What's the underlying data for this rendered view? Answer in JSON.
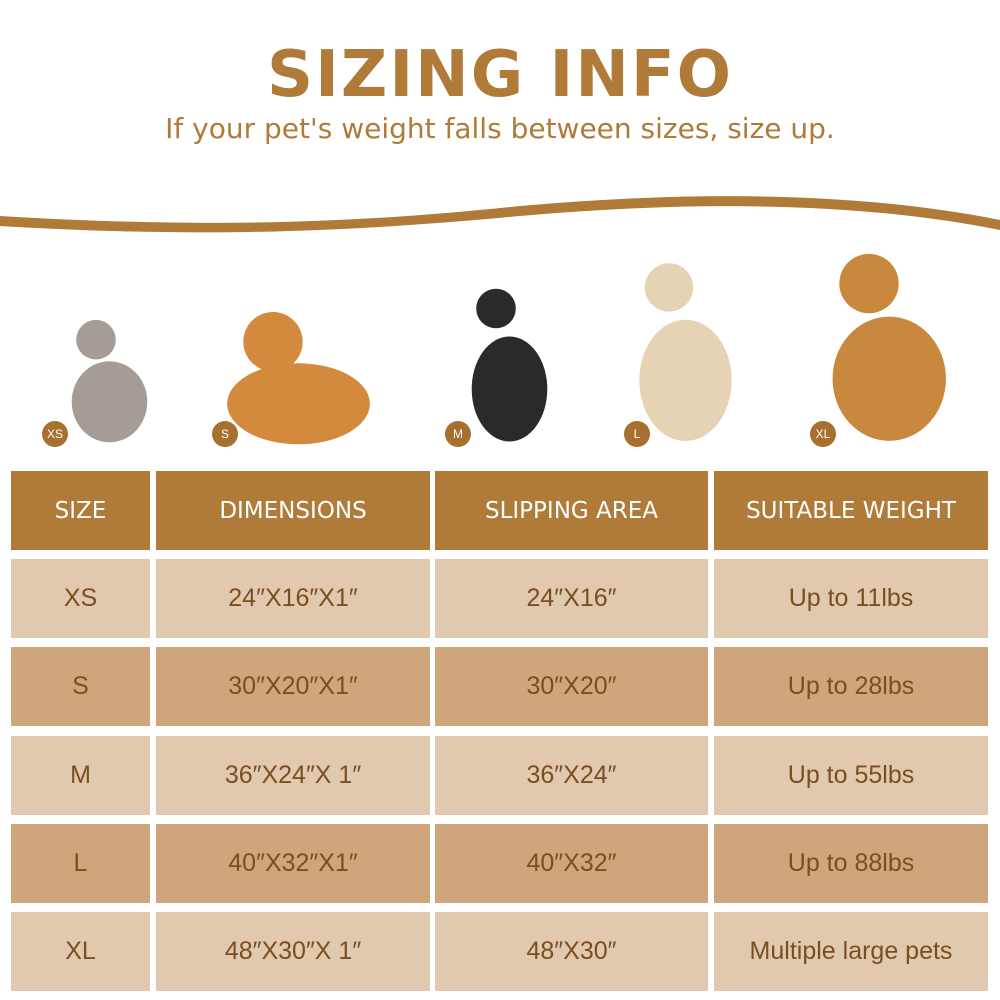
{
  "header": {
    "title": "SIZING INFO",
    "subtitle": "If your pet's weight falls between sizes, size up."
  },
  "colors": {
    "accent": "#b07a38",
    "row_light": "#e0c9ae",
    "row_dark": "#cfa67c",
    "text": "#7a4f1e"
  },
  "pets": [
    {
      "badge": "XS",
      "icon": "cat-icon"
    },
    {
      "badge": "S",
      "icon": "corgi-icon"
    },
    {
      "badge": "M",
      "icon": "border-collie-icon"
    },
    {
      "badge": "L",
      "icon": "golden-retriever-icon"
    },
    {
      "badge": "XL",
      "icon": "golden-retriever-large-icon"
    }
  ],
  "table": {
    "columns": [
      "SIZE",
      "DIMENSIONS",
      "SLIPPING AREA",
      "SUITABLE WEIGHT"
    ],
    "rows": [
      [
        "XS",
        "24″X16″X1″",
        "24″X16″",
        "Up to 11lbs"
      ],
      [
        "S",
        "30″X20″X1″",
        "30″X20″",
        "Up to 28lbs"
      ],
      [
        "M",
        "36″X24″X 1″",
        "36″X24″",
        "Up to 55lbs"
      ],
      [
        "L",
        "40″X32″X1″",
        "40″X32″",
        "Up to 88lbs"
      ],
      [
        "XL",
        "48″X30″X 1″",
        "48″X30″",
        "Multiple large pets"
      ]
    ]
  }
}
